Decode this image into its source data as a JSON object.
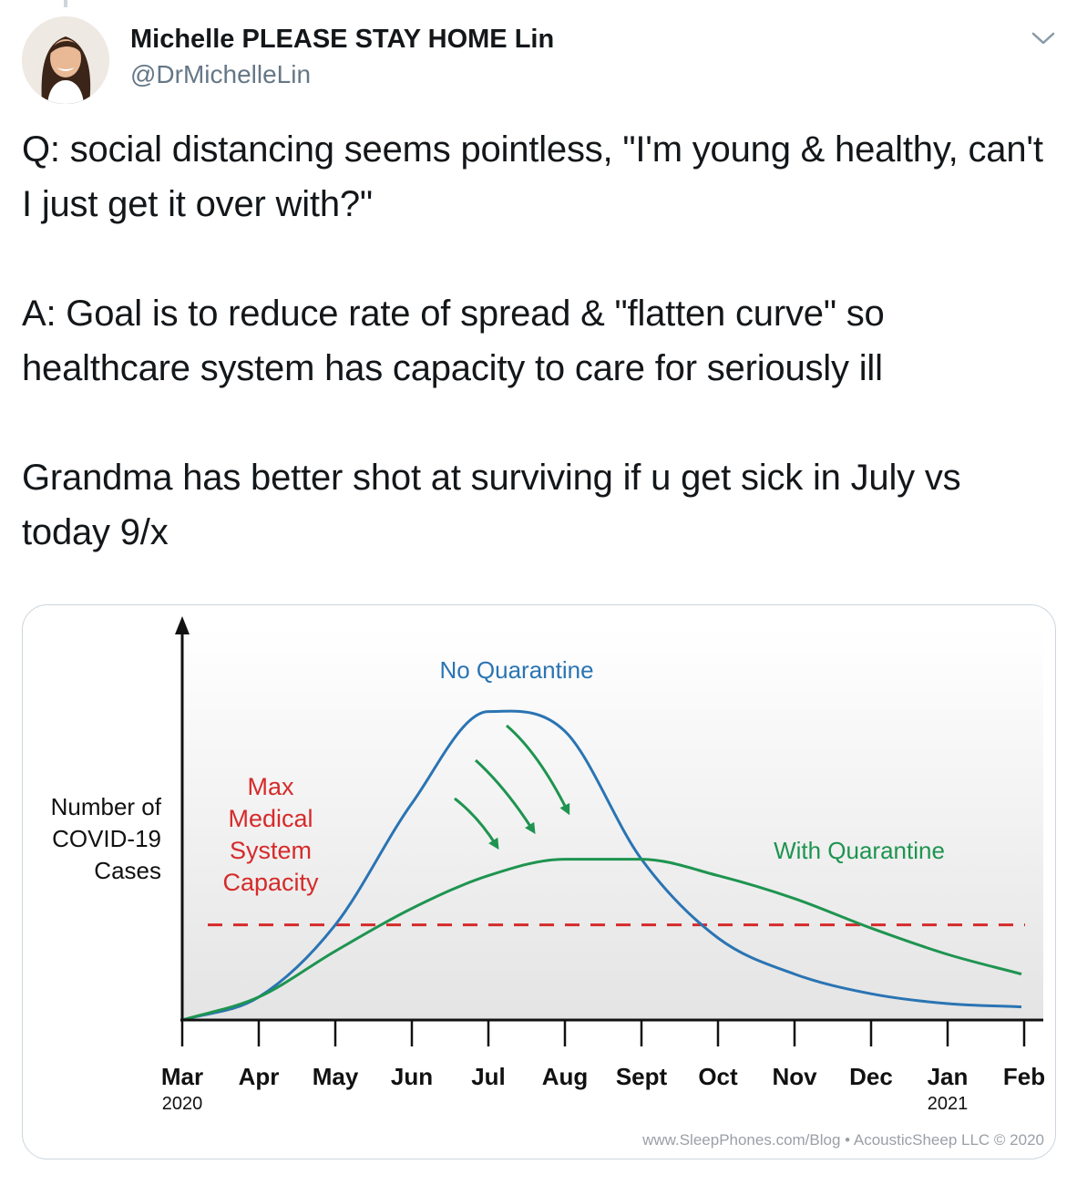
{
  "tweet": {
    "author_name": "Michelle PLEASE STAY HOME Lin",
    "author_handle": "@DrMichelleLin",
    "text": "Q: social distancing seems pointless, \"I'm young & healthy, can't I just get it over with?\"\n\nA: Goal is to reduce rate of spread & \"flatten curve\" so healthcare system has capacity to care for seriously ill\n\nGrandma has better shot at surviving if u get sick in July vs today 9/x"
  },
  "chart_data": {
    "type": "line",
    "ylabel": "Number of COVID-19 Cases",
    "ylabel_lines": [
      "Number of",
      "COVID-19",
      "Cases"
    ],
    "categories": [
      "Mar",
      "Apr",
      "May",
      "Jun",
      "Jul",
      "Aug",
      "Sept",
      "Oct",
      "Nov",
      "Dec",
      "Jan",
      "Feb"
    ],
    "category_years": [
      "2020",
      "",
      "",
      "",
      "",
      "",
      "",
      "",
      "",
      "",
      "2021",
      ""
    ],
    "series": [
      {
        "name": "No Quarantine",
        "color": "#2a74b3",
        "values": [
          0,
          0.07,
          0.29,
          0.66,
          0.94,
          0.88,
          0.49,
          0.25,
          0.14,
          0.08,
          0.05,
          0.04
        ]
      },
      {
        "name": "With Quarantine",
        "color": "#1e9450",
        "values": [
          0,
          0.07,
          0.21,
          0.34,
          0.44,
          0.49,
          0.49,
          0.44,
          0.37,
          0.28,
          0.2,
          0.14
        ]
      }
    ],
    "capacity": {
      "label_lines": [
        "Max",
        "Medical",
        "System",
        "Capacity"
      ],
      "value": 0.29,
      "color": "#d62a2a"
    },
    "credit": "www.SleepPhones.com/Blog • AcousticSheep LLC © 2020",
    "grid": false
  }
}
